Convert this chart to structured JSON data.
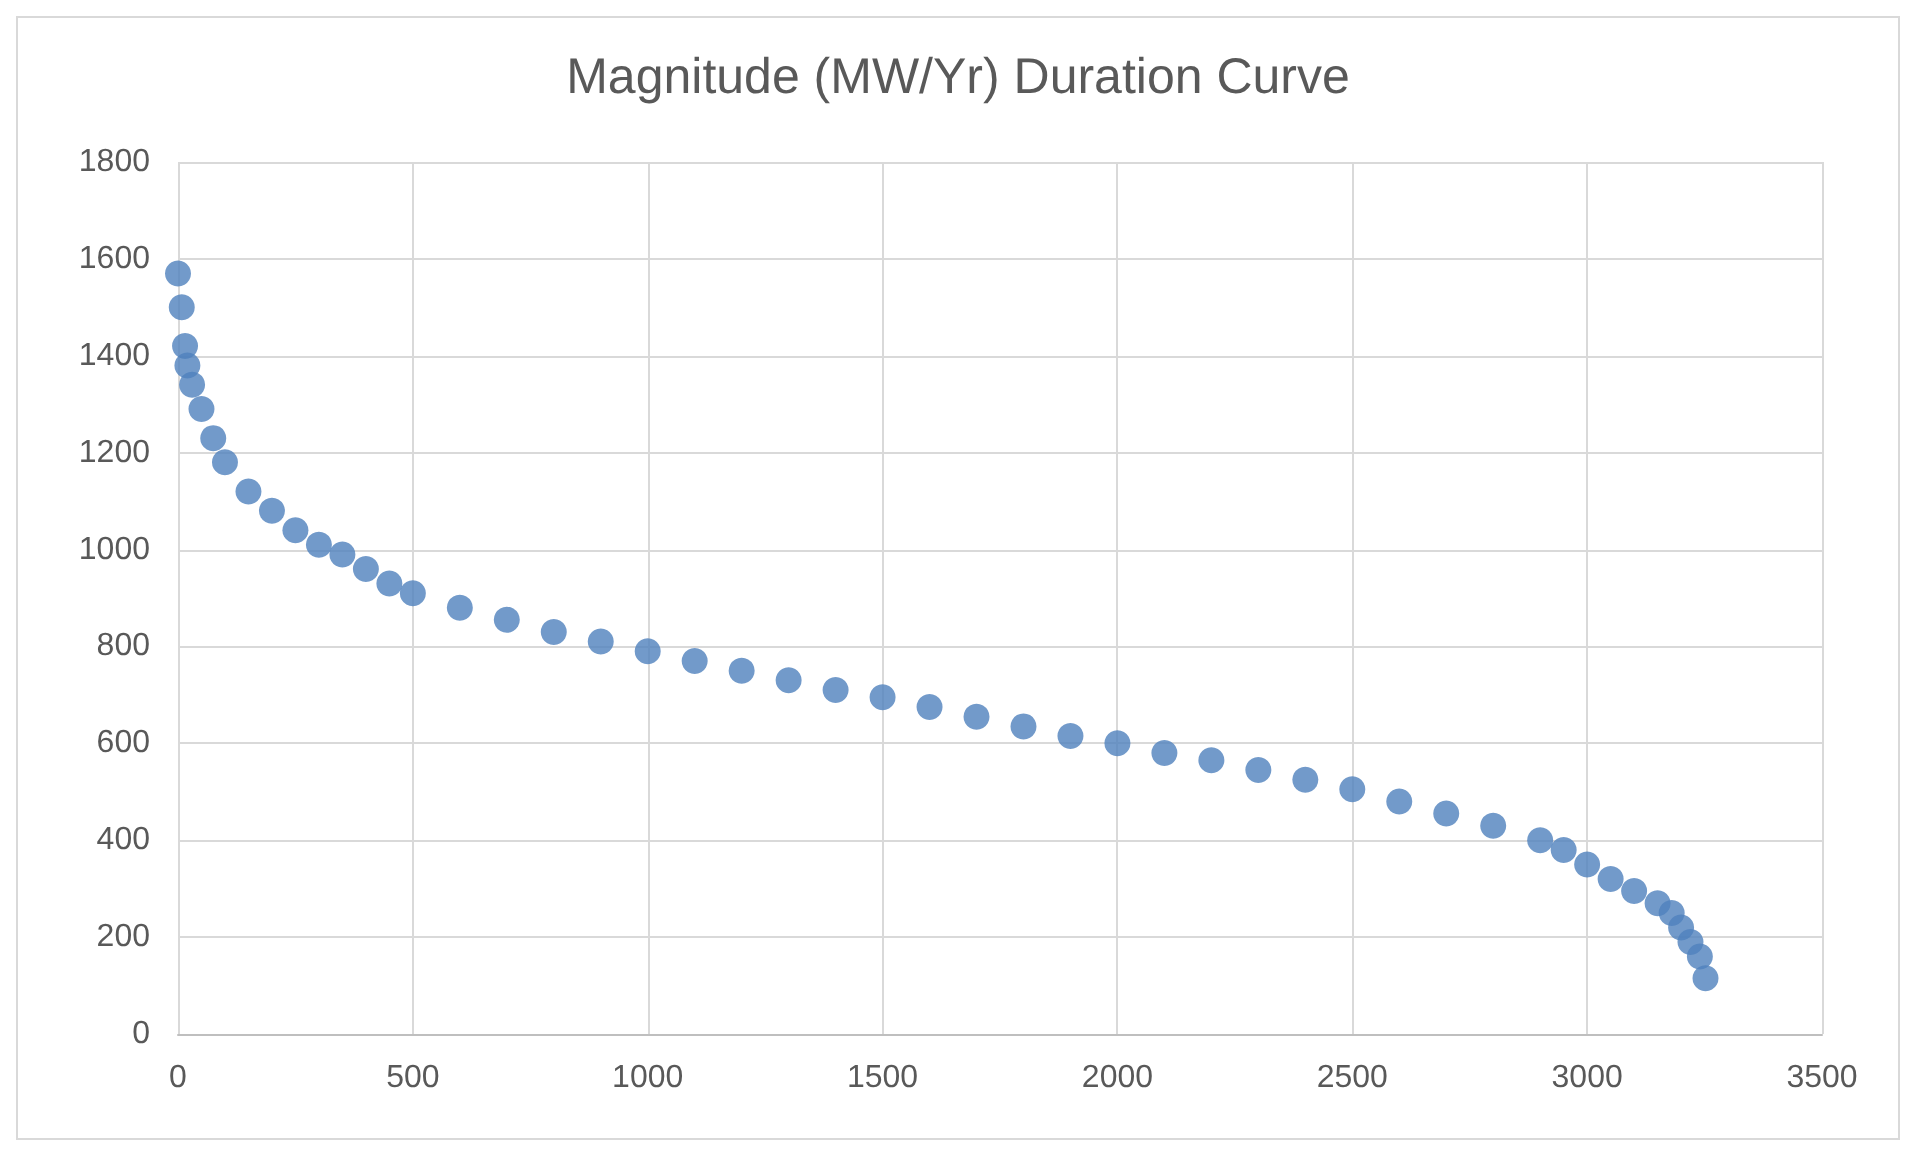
{
  "chart_data": {
    "type": "scatter",
    "title": "Magnitude (MW/Yr) Duration Curve",
    "x": [
      0,
      8,
      15,
      20,
      30,
      50,
      75,
      100,
      150,
      200,
      250,
      300,
      350,
      400,
      450,
      500,
      600,
      700,
      800,
      900,
      1000,
      1100,
      1200,
      1300,
      1400,
      1500,
      1600,
      1700,
      1800,
      1900,
      2000,
      2100,
      2200,
      2300,
      2400,
      2500,
      2600,
      2700,
      2800,
      2900,
      2950,
      3000,
      3050,
      3100,
      3150,
      3180,
      3200,
      3220,
      3240,
      3252
    ],
    "series": [
      {
        "color": "#4f81bd",
        "values": [
          1570,
          1500,
          1420,
          1380,
          1340,
          1290,
          1230,
          1180,
          1120,
          1080,
          1040,
          1010,
          990,
          960,
          930,
          910,
          880,
          855,
          830,
          810,
          790,
          770,
          750,
          730,
          710,
          695,
          675,
          655,
          635,
          615,
          600,
          580,
          565,
          545,
          525,
          505,
          480,
          455,
          430,
          400,
          380,
          350,
          320,
          295,
          270,
          250,
          220,
          190,
          160,
          115
        ]
      }
    ],
    "xlim": [
      0,
      3500
    ],
    "xticks": [
      0,
      500,
      1000,
      1500,
      2000,
      2500,
      3000,
      3500
    ],
    "ylim": [
      0,
      1800
    ],
    "yticks": [
      0,
      200,
      400,
      600,
      800,
      1000,
      1200,
      1400,
      1600,
      1800
    ],
    "grid": true,
    "marker": "circle"
  }
}
